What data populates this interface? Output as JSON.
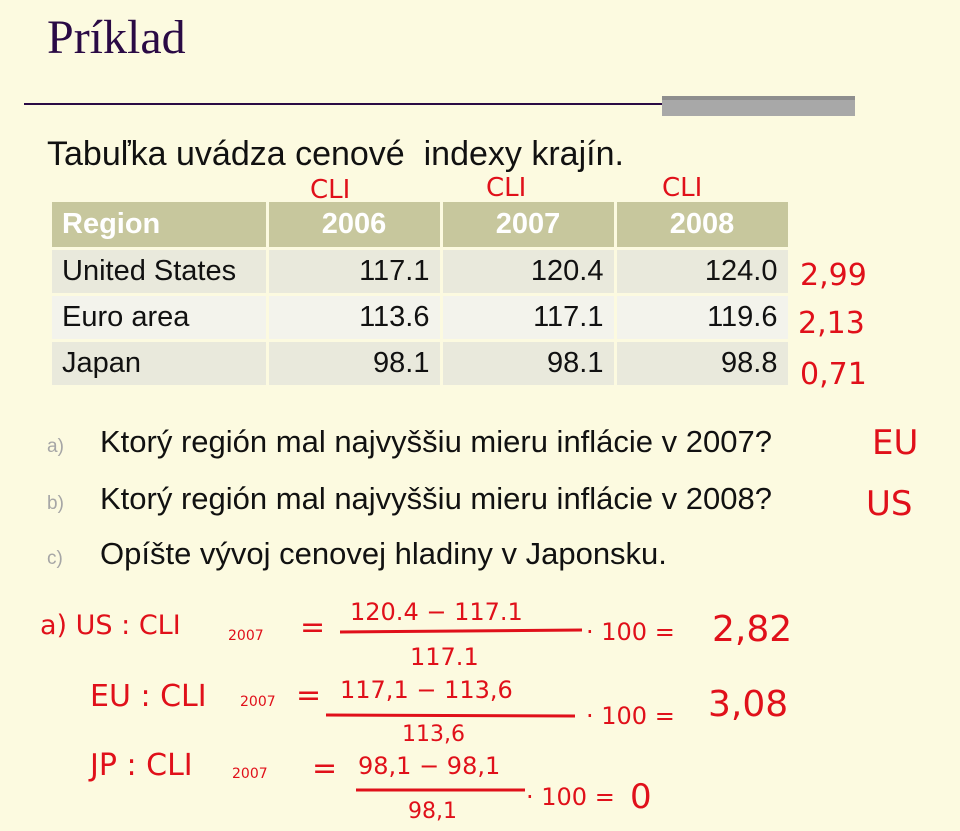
{
  "title": "Príklad",
  "intro": "Tabuľka uvádza cenové  indexy krajín.",
  "table": {
    "headers": [
      "Region",
      "2006",
      "2007",
      "2008"
    ],
    "rows": [
      {
        "region": "United States",
        "v2006": "117.1",
        "v2007": "120.4",
        "v2008": "124.0"
      },
      {
        "region": "Euro area",
        "v2006": "113.6",
        "v2007": "117.1",
        "v2008": "119.6"
      },
      {
        "region": "Japan",
        "v2006": "98.1",
        "v2007": "98.1",
        "v2008": "98.8"
      }
    ]
  },
  "questions": [
    {
      "letter": "a)",
      "text": "Ktorý región mal najvyššiu mieru inflácie v 2007?"
    },
    {
      "letter": "b)",
      "text": "Ktorý región mal najvyššiu mieru inflácie v 2008?"
    },
    {
      "letter": "c)",
      "text": "Opíšte vývoj cenovej hladiny v Japonsku."
    }
  ],
  "handwriting": {
    "color": "#e0101a",
    "column_labels": [
      "CLI",
      "CLI",
      "CLI"
    ],
    "row_rates": [
      "2,99",
      "2,13",
      "0,71"
    ],
    "answer_a": "EU",
    "answer_b": "US",
    "calc_us": {
      "label": "a) US : CLI",
      "sub": "2007",
      "eq": "=",
      "num": "120.4 − 117.1",
      "den": "117.1",
      "tail": "· 100 =",
      "result": "2,82"
    },
    "calc_eu": {
      "label": "EU : CLI",
      "sub": "2007",
      "eq": "=",
      "num": "117,1 − 113,6",
      "den": "113,6",
      "tail": "· 100 =",
      "result": "3,08"
    },
    "calc_jp": {
      "label": "JP : CLI",
      "sub": "2007",
      "eq": "=",
      "num": "98,1 − 98,1",
      "den": "98,1",
      "tail": "· 100 =",
      "result": "0"
    }
  }
}
